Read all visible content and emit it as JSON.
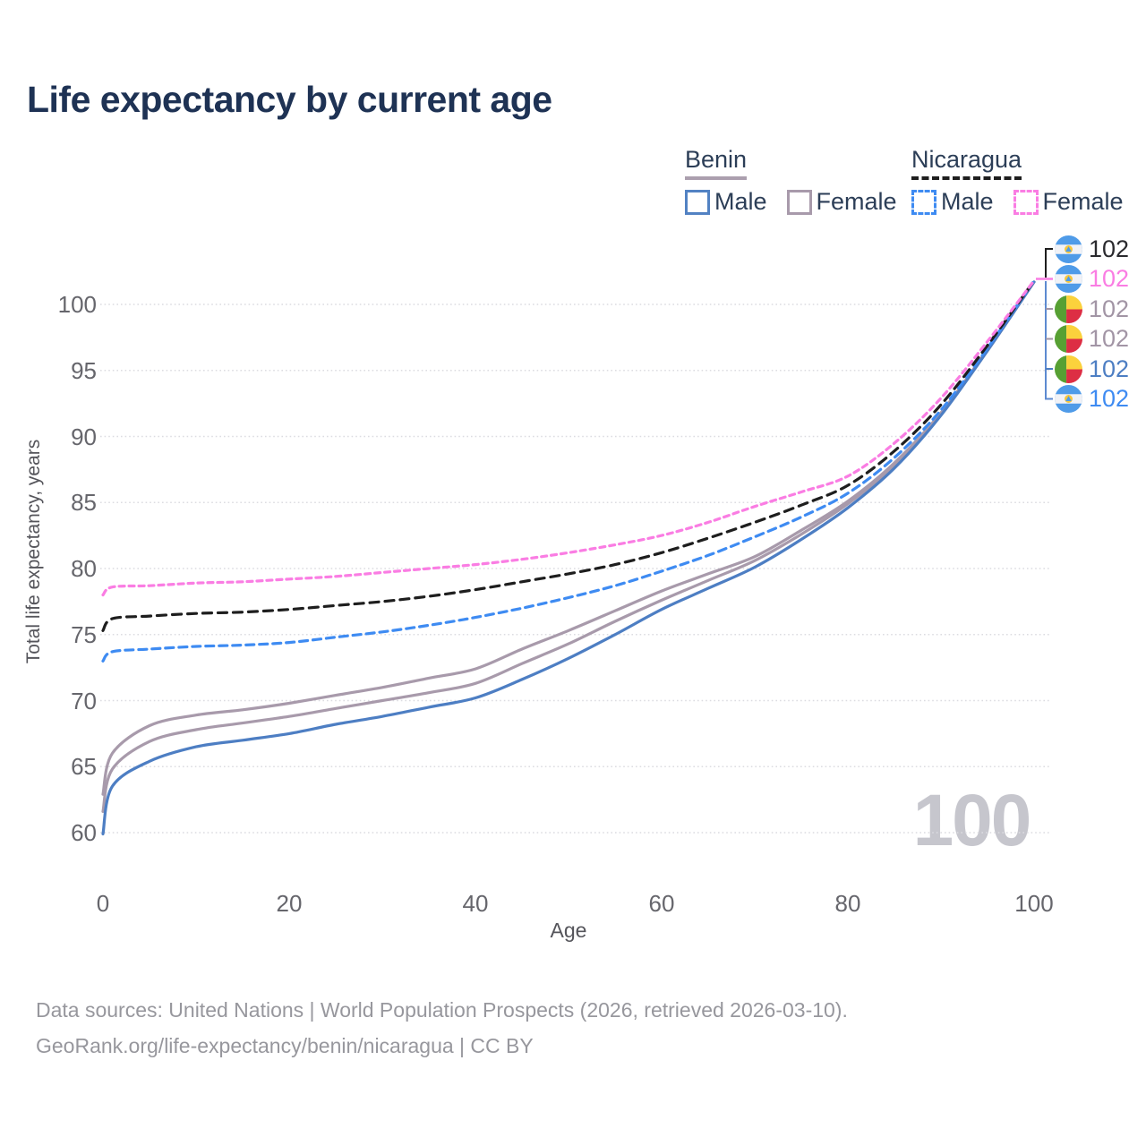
{
  "title": "Life expectancy by current age",
  "legend": {
    "groups": [
      {
        "name": "Benin",
        "underline": {
          "style": "solid",
          "color": "#ab9fae"
        },
        "items": [
          {
            "label": "Male",
            "box_style": "solid",
            "box_color": "#5282c3"
          },
          {
            "label": "Female",
            "box_style": "solid",
            "box_color": "#a89aab"
          }
        ]
      },
      {
        "name": "Nicaragua",
        "underline": {
          "style": "dashed",
          "color": "#1e1e1e"
        },
        "items": [
          {
            "label": "Male",
            "box_style": "dashed",
            "box_color": "#3e8bf2"
          },
          {
            "label": "Female",
            "box_style": "dashed",
            "box_color": "#fa7de3"
          }
        ]
      }
    ]
  },
  "chart_data": {
    "type": "line",
    "title": "Life expectancy by current age",
    "x_label": "Age",
    "y_label": "Total life expectancy, years",
    "x_ticks": [
      0,
      20,
      40,
      60,
      80,
      100
    ],
    "y_ticks": [
      60,
      65,
      70,
      75,
      80,
      85,
      90,
      95,
      100
    ],
    "x_range": [
      0,
      100
    ],
    "y_range": [
      59,
      102.5
    ],
    "grid": "horizontal-dotted",
    "legend_position": "top-right",
    "ages": [
      0,
      1,
      5,
      10,
      15,
      20,
      25,
      30,
      35,
      40,
      45,
      50,
      55,
      60,
      65,
      70,
      75,
      80,
      85,
      90,
      95,
      100
    ],
    "series": [
      {
        "name": "Benin Female",
        "country": "Benin",
        "sex": "Female",
        "style": "solid",
        "color": "#a89aab",
        "values": [
          62.9,
          66.0,
          68.1,
          68.9,
          69.3,
          69.8,
          70.4,
          71.0,
          71.7,
          72.4,
          73.9,
          75.3,
          76.8,
          78.3,
          79.6,
          80.9,
          82.9,
          85.1,
          88.0,
          91.8,
          96.6,
          101.7
        ]
      },
      {
        "name": "Benin Both sexes",
        "country": "Benin",
        "sex": "All",
        "style": "solid",
        "color": "#a89aab",
        "values": [
          61.6,
          64.8,
          66.9,
          67.8,
          68.3,
          68.8,
          69.4,
          70.0,
          70.6,
          71.3,
          72.8,
          74.3,
          76.0,
          77.6,
          79.1,
          80.6,
          82.6,
          84.9,
          87.8,
          91.7,
          96.5,
          101.7
        ]
      },
      {
        "name": "Benin Male",
        "country": "Benin",
        "sex": "Male",
        "style": "solid",
        "color": "#4d7ec3",
        "values": [
          59.9,
          63.5,
          65.4,
          66.5,
          67.0,
          67.5,
          68.2,
          68.8,
          69.5,
          70.2,
          71.6,
          73.2,
          75.0,
          76.9,
          78.5,
          80.1,
          82.2,
          84.6,
          87.6,
          91.6,
          96.5,
          101.7
        ]
      },
      {
        "name": "Nicaragua Male",
        "country": "Nicaragua",
        "sex": "Male",
        "style": "dashed",
        "color": "#3e8bf2",
        "values": [
          73.0,
          73.7,
          73.9,
          74.1,
          74.2,
          74.4,
          74.8,
          75.2,
          75.7,
          76.3,
          77.0,
          77.8,
          78.7,
          79.8,
          81.0,
          82.4,
          83.9,
          85.7,
          88.4,
          92.0,
          96.7,
          101.8
        ]
      },
      {
        "name": "Nicaragua Both sexes",
        "country": "Nicaragua",
        "sex": "All",
        "style": "dashed",
        "color": "#1e1e1e",
        "values": [
          75.3,
          76.2,
          76.4,
          76.6,
          76.7,
          76.9,
          77.2,
          77.5,
          77.9,
          78.4,
          79.0,
          79.6,
          80.3,
          81.2,
          82.3,
          83.5,
          84.8,
          86.3,
          88.9,
          92.4,
          96.9,
          101.8
        ]
      },
      {
        "name": "Nicaragua Female",
        "country": "Nicaragua",
        "sex": "Female",
        "style": "dashed",
        "color": "#fa7de3",
        "values": [
          78.0,
          78.6,
          78.7,
          78.9,
          79.0,
          79.2,
          79.4,
          79.7,
          80.0,
          80.3,
          80.7,
          81.2,
          81.8,
          82.5,
          83.5,
          84.7,
          85.8,
          87.0,
          89.5,
          92.9,
          97.2,
          101.8
        ]
      }
    ]
  },
  "end_labels": [
    {
      "flag": "nicaragua",
      "value": "102",
      "color": "#2a2a2e"
    },
    {
      "flag": "nicaragua",
      "value": "102",
      "color": "#fa7de3"
    },
    {
      "flag": "benin",
      "value": "102",
      "color": "#a295a5"
    },
    {
      "flag": "benin",
      "value": "102",
      "color": "#a295a5"
    },
    {
      "flag": "benin",
      "value": "102",
      "color": "#4d7ec3"
    },
    {
      "flag": "nicaragua",
      "value": "102",
      "color": "#3e8bf2"
    }
  ],
  "watermark": "100",
  "footer": {
    "line1": "Data sources: United Nations | World Population Prospects (2026, retrieved 2026-03-10).",
    "line2": "GeoRank.org/life-expectancy/benin/nicaragua | CC BY"
  }
}
